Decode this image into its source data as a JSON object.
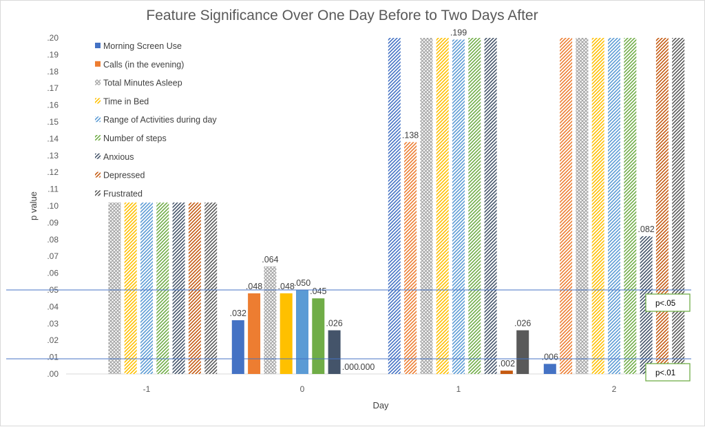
{
  "chart_data": {
    "type": "bar",
    "title": "Feature Significance Over One Day Before to Two Days After",
    "xlabel": "Day",
    "ylabel": "p value",
    "ylim": [
      0,
      0.2
    ],
    "y_ticks": [
      ".00",
      ".01",
      ".02",
      ".03",
      ".04",
      ".05",
      ".06",
      ".07",
      ".08",
      ".09",
      ".10",
      ".11",
      ".12",
      ".13",
      ".14",
      ".15",
      ".16",
      ".17",
      ".18",
      ".19",
      ".20"
    ],
    "categories": [
      "-1",
      "0",
      "1",
      "2"
    ],
    "legend_position": "top-left",
    "grid": false,
    "series": [
      {
        "name": "Morning Screen Use",
        "color": "#4472c4",
        "fill": "solid",
        "values": [
          null,
          0.032,
          0.2,
          0.006
        ],
        "labels": [
          "",
          ".032",
          "",
          ".006"
        ]
      },
      {
        "name": "Calls (in the evening)",
        "color": "#ed7d31",
        "fill": "solid",
        "values": [
          null,
          0.048,
          0.138,
          0.2
        ],
        "labels": [
          "",
          ".048",
          ".138",
          ""
        ]
      },
      {
        "name": "Total Minutes Asleep",
        "color": "#a5a5a5",
        "fill": "cross",
        "values": [
          0.102,
          0.064,
          0.2,
          0.2
        ],
        "labels": [
          "",
          ".064",
          "",
          ""
        ]
      },
      {
        "name": "Time in Bed",
        "color": "#ffc000",
        "fill": "solid",
        "values": [
          0.102,
          0.048,
          0.2,
          0.2
        ],
        "labels": [
          "",
          ".048",
          "",
          ""
        ]
      },
      {
        "name": "Range of Activities during day",
        "color": "#5b9bd5",
        "fill": "solid",
        "values": [
          0.102,
          0.05,
          0.199,
          0.2
        ],
        "labels": [
          "",
          ".050",
          ".199",
          ""
        ]
      },
      {
        "name": "Number of steps",
        "color": "#70ad47",
        "fill": "solid",
        "values": [
          0.102,
          0.045,
          0.2,
          0.2
        ],
        "labels": [
          "",
          ".045",
          "",
          ""
        ]
      },
      {
        "name": "Anxious",
        "color": "#44546a",
        "fill": "solid",
        "values": [
          0.102,
          0.026,
          0.2,
          0.082
        ],
        "labels": [
          "",
          ".026",
          "",
          ".082"
        ]
      },
      {
        "name": "Depressed",
        "color": "#c55a11",
        "fill": "solid",
        "values": [
          0.102,
          0.0,
          0.002,
          0.2
        ],
        "labels": [
          "",
          ".000",
          ".002",
          ""
        ]
      },
      {
        "name": "Frustrated",
        "color": "#595959",
        "fill": "solid",
        "values": [
          0.102,
          0.0,
          0.026,
          0.2
        ],
        "labels": [
          "",
          ".000",
          ".026",
          ""
        ]
      }
    ],
    "patterned_bars": [
      [
        true,
        true,
        true,
        true,
        true,
        true,
        true,
        true,
        true
      ],
      [
        false,
        false,
        true,
        false,
        false,
        false,
        false,
        false,
        false
      ],
      [
        true,
        true,
        true,
        true,
        true,
        true,
        true,
        false,
        false
      ],
      [
        false,
        true,
        true,
        true,
        true,
        true,
        true,
        true,
        true
      ]
    ],
    "thresholds": [
      {
        "value": 0.05,
        "label": "p<.05",
        "color": "#4472c4",
        "box_color": "#70ad47"
      },
      {
        "value": 0.009,
        "label": "p<.01",
        "color": "#4472c4",
        "box_color": "#70ad47"
      }
    ]
  }
}
